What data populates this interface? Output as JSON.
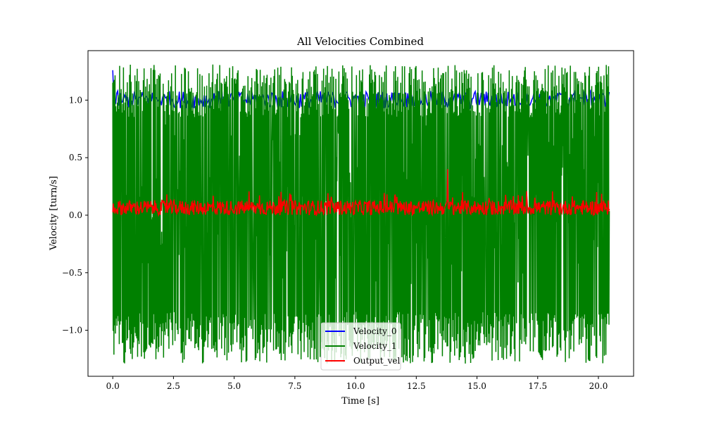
{
  "chart_data": {
    "type": "line",
    "title": "All Velocities Combined",
    "xlabel": "Time [s]",
    "ylabel": "Velocity [turn/s]",
    "xlim": [
      -1.02,
      21.45
    ],
    "ylim": [
      -1.4,
      1.43
    ],
    "xticks": [
      0.0,
      2.5,
      5.0,
      7.5,
      10.0,
      12.5,
      15.0,
      17.5,
      20.0
    ],
    "xtick_labels": [
      "0.0",
      "2.5",
      "5.0",
      "7.5",
      "10.0",
      "12.5",
      "15.0",
      "17.5",
      "20.0"
    ],
    "yticks": [
      -1.0,
      -0.5,
      0.0,
      0.5,
      1.0
    ],
    "ytick_labels": [
      "−1.0",
      "−0.5",
      "0.0",
      "0.5",
      "1.0"
    ],
    "grid": false,
    "legend_position": "bottom-center",
    "x_range": [
      0.0,
      20.45
    ],
    "series": [
      {
        "name": "Velocity_0",
        "color": "#0000ff",
        "description_values": {
          "x_start": 0.0,
          "x_end": 20.45,
          "typical_min": 0.93,
          "typical_max": 1.08,
          "peak": 1.26
        }
      },
      {
        "name": "Velocity_1",
        "color": "#008000",
        "description_values": {
          "x_start": 0.0,
          "x_end": 20.45,
          "min": -1.29,
          "max": 1.31
        }
      },
      {
        "name": "Output_vel",
        "color": "#ff0000",
        "description_values": {
          "x_start": 0.0,
          "x_end": 20.45,
          "typical_min": 0.0,
          "typical_max": 0.13,
          "peak": 0.4,
          "peak_x": 13.8
        }
      }
    ]
  }
}
